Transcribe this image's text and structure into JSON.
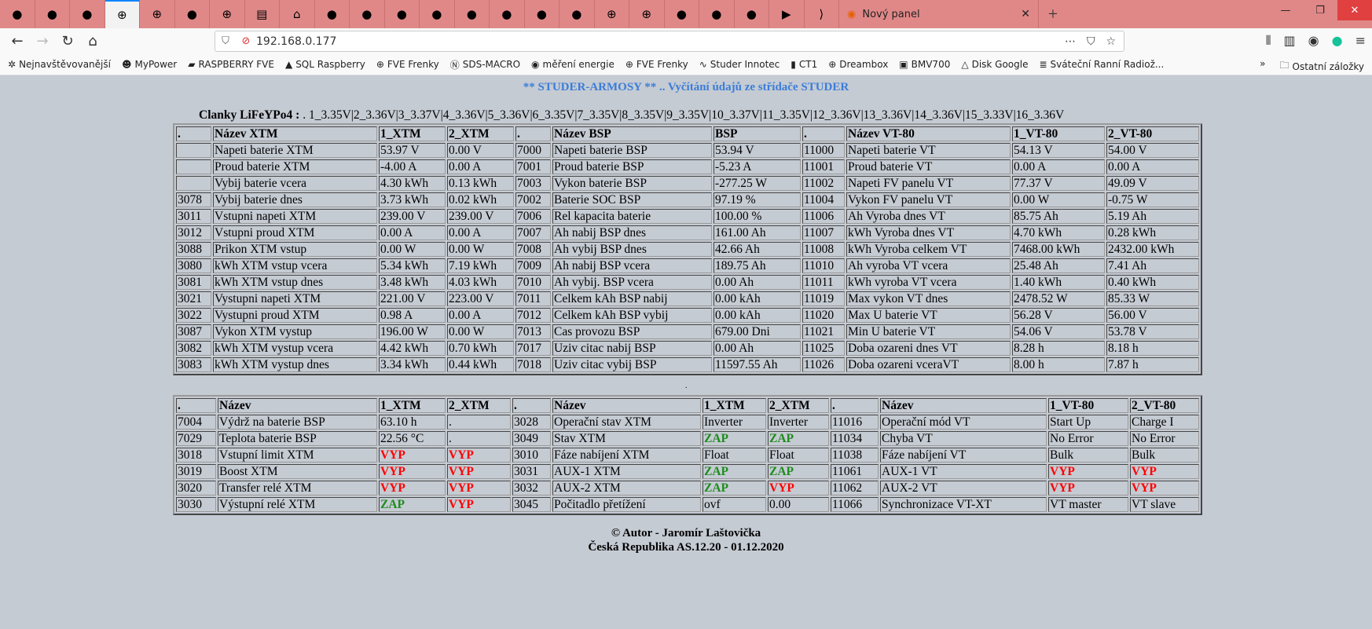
{
  "browser": {
    "tab_icons": [
      "myPower-icon",
      "raspberry-icon",
      "pma-icon",
      "globe-icon",
      "globe-icon",
      "sds-icon",
      "globe-icon",
      "doc-icon",
      "home-icon",
      "drop-icon",
      "ya-icon",
      "flame-icon",
      "24-icon",
      "s-icon",
      "e-icon",
      "arrow-icon",
      "b-icon",
      "globe-icon",
      "globe-icon",
      "p-icon",
      "dreambox-icon",
      "c-icon",
      "youtube-icon",
      "pdf-icon"
    ],
    "new_tab_label": "Nový panel",
    "url": "192.168.0.177",
    "bookmarks": [
      {
        "icon": "✲",
        "label": "Nejnavštěvovanější"
      },
      {
        "icon": "☻",
        "label": "MyPower"
      },
      {
        "icon": "▰",
        "label": "RASPBERRY FVE"
      },
      {
        "icon": "▲",
        "label": "SQL Raspberry"
      },
      {
        "icon": "⊕",
        "label": "FVE Frenky"
      },
      {
        "icon": "Ⓝ",
        "label": "SDS-MACRO"
      },
      {
        "icon": "◉",
        "label": "měření energie"
      },
      {
        "icon": "⊕",
        "label": "FVE Frenky"
      },
      {
        "icon": "∿",
        "label": "Studer Innotec"
      },
      {
        "icon": "▮",
        "label": "CT1"
      },
      {
        "icon": "⊕",
        "label": "Dreambox"
      },
      {
        "icon": "▣",
        "label": "BMV700"
      },
      {
        "icon": "△",
        "label": "Disk Google"
      },
      {
        "icon": "≣",
        "label": "Sváteční Ranní Radiož..."
      }
    ],
    "other_bookmarks": "Ostatní záložky"
  },
  "page": {
    "title": "** STUDER-ARMOSY ** .. Vyčítání údajů ze střídače STUDER",
    "cells_label": "Clanky LiFeYPo4 :",
    "cells_values": ". 1_3.35V|2_3.36V|3_3.37V|4_3.36V|5_3.36V|6_3.35V|7_3.35V|8_3.35V|9_3.35V|10_3.37V|11_3.35V|12_3.36V|13_3.36V|14_3.36V|15_3.33V|16_3.36V",
    "separator": ".",
    "footer_line1": "© Autor - Jaromír Laštovička",
    "footer_line2": "Česká Republika AS.12.20 - 01.12.2020"
  },
  "table1": {
    "header": [
      ".",
      "Název XTM",
      "1_XTM",
      "2_XTM",
      ".",
      "Název BSP",
      "BSP",
      ".",
      "Název VT-80",
      "1_VT-80",
      "2_VT-80"
    ],
    "rows": [
      [
        "",
        "Napeti baterie XTM",
        "53.97 V",
        "0.00 V",
        "7000",
        "Napeti baterie BSP",
        "53.94 V",
        "11000",
        "Napeti baterie VT",
        "54.13 V",
        "54.00 V"
      ],
      [
        "",
        "Proud baterie XTM",
        "-4.00 A",
        "0.00 A",
        "7001",
        "Proud baterie BSP",
        "-5.23 A",
        "11001",
        "Proud baterie VT",
        "0.00 A",
        "0.00 A"
      ],
      [
        "",
        "Vybij baterie vcera",
        "4.30 kWh",
        "0.13 kWh",
        "7003",
        "Vykon baterie BSP",
        "-277.25 W",
        "11002",
        "Napeti FV panelu VT",
        "77.37 V",
        "49.09 V"
      ],
      [
        "3078",
        "Vybij baterie dnes",
        "3.73 kWh",
        "0.02 kWh",
        "7002",
        "Baterie SOC BSP",
        "97.19 %",
        "11004",
        "Vykon FV panelu VT",
        "0.00 W",
        "-0.75 W"
      ],
      [
        "3011",
        "Vstupni napeti XTM",
        "239.00 V",
        "239.00 V",
        "7006",
        "Rel kapacita baterie",
        "100.00 %",
        "11006",
        "Ah Vyroba dnes VT",
        "85.75 Ah",
        "5.19 Ah"
      ],
      [
        "3012",
        "Vstupni proud XTM",
        "0.00 A",
        "0.00 A",
        "7007",
        "Ah nabij BSP dnes",
        "161.00 Ah",
        "11007",
        "kWh Vyroba dnes VT",
        "4.70 kWh",
        "0.28 kWh"
      ],
      [
        "3088",
        "Prikon XTM vstup",
        "0.00 W",
        "0.00 W",
        "7008",
        "Ah vybij BSP dnes",
        "42.66 Ah",
        "11008",
        "kWh Vyroba celkem VT",
        "7468.00 kWh",
        "2432.00 kWh"
      ],
      [
        "3080",
        "kWh XTM vstup vcera",
        "5.34 kWh",
        "7.19 kWh",
        "7009",
        "Ah nabij BSP vcera",
        "189.75 Ah",
        "11010",
        "Ah vyroba VT vcera",
        "25.48 Ah",
        "7.41 Ah"
      ],
      [
        "3081",
        "kWh XTM vstup dnes",
        "3.48 kWh",
        "4.03 kWh",
        "7010",
        "Ah vybij. BSP vcera",
        "0.00 Ah",
        "11011",
        "kWh vyroba VT vcera",
        "1.40 kWh",
        "0.40 kWh"
      ],
      [
        "3021",
        "Vystupni napeti XTM",
        "221.00 V",
        "223.00 V",
        "7011",
        "Celkem kAh BSP nabij",
        "0.00 kAh",
        "11019",
        "Max vykon VT dnes",
        "2478.52 W",
        "85.33 W"
      ],
      [
        "3022",
        "Vystupni proud XTM",
        "0.98 A",
        "0.00 A",
        "7012",
        "Celkem kAh BSP vybij",
        "0.00 kAh",
        "11020",
        "Max U baterie VT",
        "56.28 V",
        "56.00 V"
      ],
      [
        "3087",
        "Vykon XTM vystup",
        "196.00 W",
        "0.00 W",
        "7013",
        "Cas provozu BSP",
        "679.00 Dni",
        "11021",
        "Min U baterie VT",
        "54.06 V",
        "53.78 V"
      ],
      [
        "3082",
        "kWh XTM vystup vcera",
        "4.42 kWh",
        "0.70 kWh",
        "7017",
        "Uziv citac nabij BSP",
        "0.00 Ah",
        "11025",
        "Doba ozareni dnes VT",
        "8.28 h",
        "8.18 h"
      ],
      [
        "3083",
        "kWh XTM vystup dnes",
        "3.34 kWh",
        "0.44 kWh",
        "7018",
        "Uziv citac vybij BSP",
        "11597.55 Ah",
        "11026",
        "Doba ozareni vceraVT",
        "8.00 h",
        "7.87 h"
      ]
    ]
  },
  "table2": {
    "header": [
      ".",
      "Název",
      "1_XTM",
      "2_XTM",
      ".",
      "Název",
      "1_XTM",
      "2_XTM",
      ".",
      "Název",
      "1_VT-80",
      "2_VT-80"
    ],
    "rows": [
      [
        "7004",
        "Výdrž na baterie BSP",
        "63.10 h",
        ".",
        "3028",
        "Operační stav XTM",
        "Inverter",
        "Inverter",
        "11016",
        "Operační mód VT",
        "Start Up",
        "Charge I"
      ],
      [
        "7029",
        "Teplota baterie BSP",
        "22.56 °C",
        ".",
        "3049",
        "Stav XTM",
        "ZAP",
        "ZAP",
        "11034",
        "Chyba VT",
        "No Error",
        "No Error"
      ],
      [
        "3018",
        "Vstupní limit XTM",
        "VYP",
        "VYP",
        "3010",
        "Fáze nabíjení XTM",
        "Float",
        "Float",
        "11038",
        "Fáze nabíjení VT",
        "Bulk",
        "Bulk"
      ],
      [
        "3019",
        "Boost XTM",
        "VYP",
        "VYP",
        "3031",
        "AUX-1 XTM",
        "ZAP",
        "ZAP",
        "11061",
        "AUX-1 VT",
        "VYP",
        "VYP"
      ],
      [
        "3020",
        "Transfer relé XTM",
        "VYP",
        "VYP",
        "3032",
        "AUX-2 XTM",
        "ZAP",
        "VYP",
        "11062",
        "AUX-2 VT",
        "VYP",
        "VYP"
      ],
      [
        "3030",
        "Výstupní relé XTM",
        "ZAP",
        "VYP",
        "3045",
        "Počitadlo přetížení",
        "ovf",
        "0.00",
        "11066",
        "Synchronizace VT-XT",
        "VT master",
        "VT slave"
      ]
    ]
  },
  "colors": {
    "on": "#1e8c1e",
    "off": "#ff0000",
    "title": "#3b7dd8",
    "tabbar": "#e08888",
    "page_bg": "#c5cbd3"
  }
}
